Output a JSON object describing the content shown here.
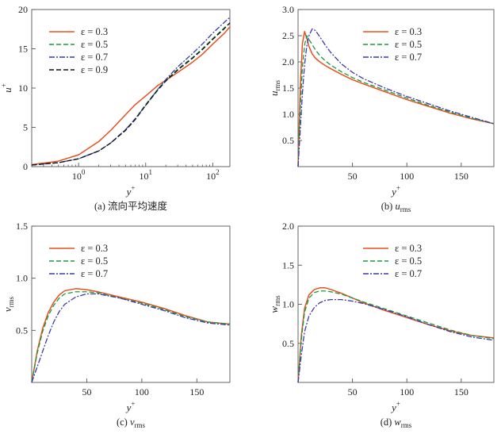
{
  "chart_data": [
    {
      "type": "line",
      "panel": "a",
      "caption": "(a) 流向平均速度",
      "xlabel": "y+",
      "ylabel": "u+",
      "x_scale": "log",
      "xlim": [
        0.2,
        180
      ],
      "ylim": [
        0,
        20
      ],
      "xticks": [
        "10^0",
        "10^1",
        "10^2"
      ],
      "yticks": [
        "0",
        "5",
        "10",
        "15",
        "20"
      ],
      "legend_position": "top-left",
      "series": [
        {
          "name": "ε = 0.3",
          "color": "#e8501e",
          "dash": "solid",
          "x": [
            0.2,
            0.5,
            1,
            2,
            3,
            5,
            7,
            10,
            15,
            20,
            30,
            50,
            70,
            100,
            150,
            180
          ],
          "y": [
            0.25,
            0.7,
            1.5,
            3.2,
            4.6,
            6.6,
            7.9,
            9.0,
            10.3,
            11.0,
            12.0,
            13.3,
            14.3,
            15.6,
            17.0,
            17.8
          ]
        },
        {
          "name": "ε = 0.5",
          "color": "#1a9a3a",
          "dash": "6,3",
          "x": [
            0.2,
            0.5,
            1,
            2,
            3,
            5,
            7,
            10,
            15,
            20,
            30,
            50,
            70,
            100,
            150,
            180
          ],
          "y": [
            0.2,
            0.5,
            1.0,
            2.0,
            3.0,
            4.7,
            6.1,
            7.9,
            9.8,
            11.0,
            12.4,
            13.9,
            15.0,
            16.3,
            17.7,
            18.3
          ]
        },
        {
          "name": "ε = 0.7",
          "color": "#3a3ab0",
          "dash": "7,2,2,2",
          "x": [
            0.2,
            0.5,
            1,
            2,
            3,
            5,
            7,
            10,
            15,
            20,
            30,
            50,
            70,
            100,
            150,
            180
          ],
          "y": [
            0.2,
            0.5,
            1.0,
            2.0,
            3.0,
            4.7,
            6.1,
            7.8,
            9.8,
            11.1,
            12.7,
            14.4,
            15.6,
            17.0,
            18.4,
            19.0
          ]
        },
        {
          "name": "ε = 0.9",
          "color": "#111111",
          "dash": "6,3",
          "x": [
            0.2,
            0.5,
            1,
            2,
            3,
            5,
            7,
            10,
            15,
            20,
            30,
            50,
            70,
            100,
            150,
            180
          ],
          "y": [
            0.2,
            0.5,
            1.0,
            2.0,
            3.0,
            4.6,
            6.0,
            7.8,
            9.7,
            10.9,
            12.3,
            13.8,
            14.9,
            16.2,
            17.6,
            18.3
          ]
        }
      ]
    },
    {
      "type": "line",
      "panel": "b",
      "caption_prefix": "(b) ",
      "caption_sym": "u",
      "caption_sub": "rms",
      "xlabel": "y+",
      "ylabel": "urms",
      "xlim": [
        0,
        180
      ],
      "ylim": [
        0,
        3.0
      ],
      "xticks": [
        "50",
        "100",
        "150"
      ],
      "yticks": [
        "0.5",
        "1.0",
        "1.5",
        "2.0",
        "2.5",
        "3.0"
      ],
      "legend_position": "top-right",
      "series": [
        {
          "name": "ε = 0.3",
          "color": "#e8501e",
          "dash": "solid",
          "x": [
            0,
            2,
            4,
            6,
            8,
            10,
            13,
            16,
            20,
            25,
            30,
            40,
            50,
            60,
            80,
            100,
            120,
            140,
            160,
            180
          ],
          "y": [
            0.0,
            1.5,
            2.35,
            2.58,
            2.45,
            2.3,
            2.15,
            2.07,
            2.0,
            1.93,
            1.87,
            1.76,
            1.66,
            1.58,
            1.43,
            1.28,
            1.15,
            1.02,
            0.91,
            0.82
          ]
        },
        {
          "name": "ε = 0.5",
          "color": "#1a9a3a",
          "dash": "6,3",
          "x": [
            0,
            2,
            4,
            6,
            8,
            10,
            13,
            16,
            20,
            25,
            30,
            40,
            50,
            60,
            80,
            100,
            120,
            140,
            160,
            180
          ],
          "y": [
            0.0,
            1.1,
            1.9,
            2.32,
            2.5,
            2.43,
            2.33,
            2.23,
            2.12,
            2.02,
            1.94,
            1.81,
            1.7,
            1.61,
            1.46,
            1.31,
            1.17,
            1.04,
            0.92,
            0.82
          ]
        },
        {
          "name": "ε = 0.7",
          "color": "#3a3ab0",
          "dash": "7,2,2,2",
          "x": [
            0,
            2,
            4,
            6,
            8,
            10,
            13,
            16,
            20,
            25,
            30,
            40,
            50,
            60,
            80,
            100,
            120,
            140,
            160,
            180
          ],
          "y": [
            0.0,
            0.7,
            1.4,
            1.95,
            2.3,
            2.5,
            2.63,
            2.6,
            2.48,
            2.32,
            2.18,
            1.96,
            1.8,
            1.68,
            1.5,
            1.34,
            1.2,
            1.06,
            0.94,
            0.82
          ]
        }
      ]
    },
    {
      "type": "line",
      "panel": "c",
      "caption_prefix": "(c) ",
      "caption_sym": "v",
      "caption_sub": "rms",
      "xlabel": "y+",
      "ylabel": "vrms",
      "xlim": [
        0,
        180
      ],
      "ylim": [
        0,
        1.5
      ],
      "xticks": [
        "50",
        "100",
        "150"
      ],
      "yticks": [
        "0.5",
        "1.0",
        "1.5"
      ],
      "legend_position": "top-left",
      "series": [
        {
          "name": "ε = 0.3",
          "color": "#e8501e",
          "dash": "solid",
          "x": [
            0,
            5,
            10,
            15,
            20,
            25,
            30,
            40,
            50,
            60,
            80,
            100,
            120,
            140,
            160,
            180
          ],
          "y": [
            0.0,
            0.3,
            0.52,
            0.67,
            0.77,
            0.84,
            0.88,
            0.9,
            0.89,
            0.87,
            0.82,
            0.77,
            0.71,
            0.64,
            0.58,
            0.56
          ]
        },
        {
          "name": "ε = 0.5",
          "color": "#1a9a3a",
          "dash": "6,3",
          "x": [
            0,
            5,
            10,
            15,
            20,
            25,
            30,
            40,
            50,
            60,
            80,
            100,
            120,
            140,
            160,
            180
          ],
          "y": [
            0.0,
            0.28,
            0.49,
            0.64,
            0.74,
            0.81,
            0.85,
            0.87,
            0.87,
            0.86,
            0.81,
            0.76,
            0.7,
            0.63,
            0.58,
            0.56
          ]
        },
        {
          "name": "ε = 0.7",
          "color": "#3a3ab0",
          "dash": "7,2,2,2",
          "x": [
            0,
            5,
            10,
            15,
            20,
            25,
            30,
            40,
            50,
            60,
            80,
            100,
            120,
            140,
            160,
            180
          ],
          "y": [
            0.0,
            0.15,
            0.3,
            0.45,
            0.58,
            0.68,
            0.75,
            0.82,
            0.85,
            0.85,
            0.81,
            0.75,
            0.69,
            0.62,
            0.57,
            0.55
          ]
        }
      ]
    },
    {
      "type": "line",
      "panel": "d",
      "caption_prefix": "(d) ",
      "caption_sym": "w",
      "caption_sub": "rms",
      "xlabel": "y+",
      "ylabel": "wrms",
      "xlim": [
        0,
        180
      ],
      "ylim": [
        0,
        2.0
      ],
      "xticks": [
        "50",
        "100",
        "150"
      ],
      "yticks": [
        "0.5",
        "1.0",
        "1.5",
        "2.0"
      ],
      "legend_position": "top-right",
      "series": [
        {
          "name": "ε = 0.3",
          "color": "#e8501e",
          "dash": "solid",
          "x": [
            0,
            3,
            6,
            10,
            15,
            20,
            25,
            30,
            40,
            50,
            60,
            80,
            100,
            120,
            140,
            160,
            180
          ],
          "y": [
            0.0,
            0.6,
            0.95,
            1.12,
            1.19,
            1.21,
            1.21,
            1.19,
            1.14,
            1.08,
            1.02,
            0.92,
            0.83,
            0.74,
            0.66,
            0.6,
            0.57
          ]
        },
        {
          "name": "ε = 0.5",
          "color": "#1a9a3a",
          "dash": "6,3",
          "x": [
            0,
            3,
            6,
            10,
            15,
            20,
            25,
            30,
            40,
            50,
            60,
            80,
            100,
            120,
            140,
            160,
            180
          ],
          "y": [
            0.0,
            0.55,
            0.9,
            1.08,
            1.15,
            1.17,
            1.17,
            1.16,
            1.13,
            1.08,
            1.03,
            0.94,
            0.85,
            0.76,
            0.67,
            0.6,
            0.56
          ]
        },
        {
          "name": "ε = 0.7",
          "color": "#3a3ab0",
          "dash": "7,2,2,2",
          "x": [
            0,
            3,
            6,
            10,
            15,
            20,
            25,
            30,
            40,
            50,
            60,
            80,
            100,
            120,
            140,
            160,
            180
          ],
          "y": [
            0.0,
            0.35,
            0.65,
            0.85,
            0.96,
            1.02,
            1.05,
            1.06,
            1.06,
            1.04,
            1.01,
            0.93,
            0.84,
            0.74,
            0.65,
            0.58,
            0.54
          ]
        }
      ]
    }
  ]
}
